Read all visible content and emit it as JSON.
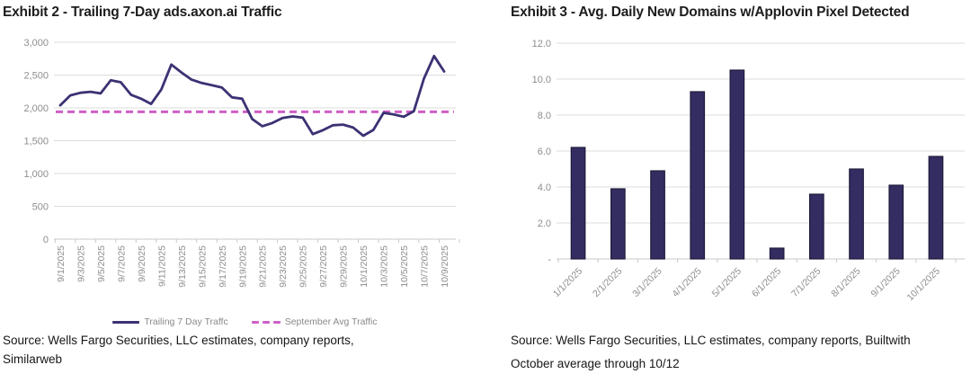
{
  "page": {
    "background": "#ffffff"
  },
  "left_chart": {
    "title": "Exhibit 2 - Trailing 7-Day ads.axon.ai Traffic",
    "legend": [
      {
        "label": "Trailing 7 Day Traffc",
        "style": "solid-line",
        "color": "#3b3274"
      },
      {
        "label": "September Avg Traffic",
        "style": "dashed-line",
        "color": "#ce5fc6"
      }
    ],
    "source_line1": "Source: Wells Fargo Securities, LLC estimates, company reports,",
    "source_line2": "Similarweb"
  },
  "right_chart": {
    "title": "Exhibit 3 - Avg. Daily New Domains w/Applovin Pixel Detected",
    "source_line1": "Source: Wells Fargo Securities, LLC estimates, company reports, Builtwith",
    "source_line2": "October average through 10/12"
  },
  "chart_data": [
    {
      "type": "line",
      "title": "Exhibit 2 - Trailing 7-Day ads.axon.ai Traffic",
      "x": [
        "9/1/2025",
        "9/2/2025",
        "9/3/2025",
        "9/4/2025",
        "9/5/2025",
        "9/6/2025",
        "9/7/2025",
        "9/8/2025",
        "9/9/2025",
        "9/10/2025",
        "9/11/2025",
        "9/12/2025",
        "9/13/2025",
        "9/14/2025",
        "9/15/2025",
        "9/16/2025",
        "9/17/2025",
        "9/18/2025",
        "9/19/2025",
        "9/20/2025",
        "9/21/2025",
        "9/22/2025",
        "9/23/2025",
        "9/24/2025",
        "9/25/2025",
        "9/26/2025",
        "9/27/2025",
        "9/28/2025",
        "9/29/2025",
        "9/30/2025",
        "10/1/2025",
        "10/2/2025",
        "10/3/2025",
        "10/4/2025",
        "10/5/2025",
        "10/6/2025",
        "10/7/2025",
        "10/8/2025",
        "10/9/2025"
      ],
      "series": [
        {
          "name": "Trailing 7 Day Traffc",
          "style": "solid",
          "color": "#3b3274",
          "values": [
            2040,
            2190,
            2230,
            2245,
            2220,
            2420,
            2390,
            2200,
            2140,
            2060,
            2280,
            2660,
            2540,
            2430,
            2380,
            2345,
            2310,
            2160,
            2140,
            1830,
            1720,
            1770,
            1845,
            1870,
            1850,
            1600,
            1660,
            1735,
            1745,
            1700,
            1575,
            1665,
            1925,
            1900,
            1865,
            1950,
            2445,
            2790,
            2555
          ]
        },
        {
          "name": "September Avg Traffic",
          "style": "dashed",
          "color": "#ce5fc6",
          "constant_value": 1940
        }
      ],
      "ylim": [
        0,
        3000
      ],
      "ytick_step": 500,
      "ytick_labels": [
        "0",
        "500",
        "1,000",
        "1,500",
        "2,000",
        "2,500",
        "3,000"
      ],
      "xtick_shown_labels": [
        "9/1/2025",
        "9/3/2025",
        "9/5/2025",
        "9/7/2025",
        "9/9/2025",
        "9/11/2025",
        "9/13/2025",
        "9/15/2025",
        "9/17/2025",
        "9/19/2025",
        "9/21/2025",
        "9/23/2025",
        "9/25/2025",
        "9/27/2025",
        "9/29/2025",
        "10/1/2025",
        "10/3/2025",
        "10/5/2025",
        "10/7/2025",
        "10/9/2025"
      ],
      "grid": true,
      "legend_position": "bottom"
    },
    {
      "type": "bar",
      "title": "Exhibit 3 - Avg. Daily New Domains w/Applovin Pixel Detected",
      "categories": [
        "1/1/2025",
        "2/1/2025",
        "3/1/2025",
        "4/1/2025",
        "5/1/2025",
        "6/1/2025",
        "7/1/2025",
        "8/1/2025",
        "9/1/2025",
        "10/1/2025"
      ],
      "values": [
        6.2,
        3.9,
        4.9,
        9.3,
        10.5,
        0.6,
        3.6,
        5.0,
        4.1,
        5.7
      ],
      "bar_color": "#332d62",
      "bar_border": "#1e1b3a",
      "ylim": [
        0,
        12
      ],
      "ytick_step": 2,
      "ytick_labels": [
        "-",
        "2.0",
        "4.0",
        "6.0",
        "8.0",
        "10.0",
        "12.0"
      ],
      "grid": true,
      "legend_position": "none"
    }
  ],
  "colors": {
    "grid": "#dcdcdc",
    "axis": "#c9c9c9",
    "tick_label": "#8e8e8e",
    "title_text": "#1d1d1d",
    "source_text": "#161616"
  }
}
